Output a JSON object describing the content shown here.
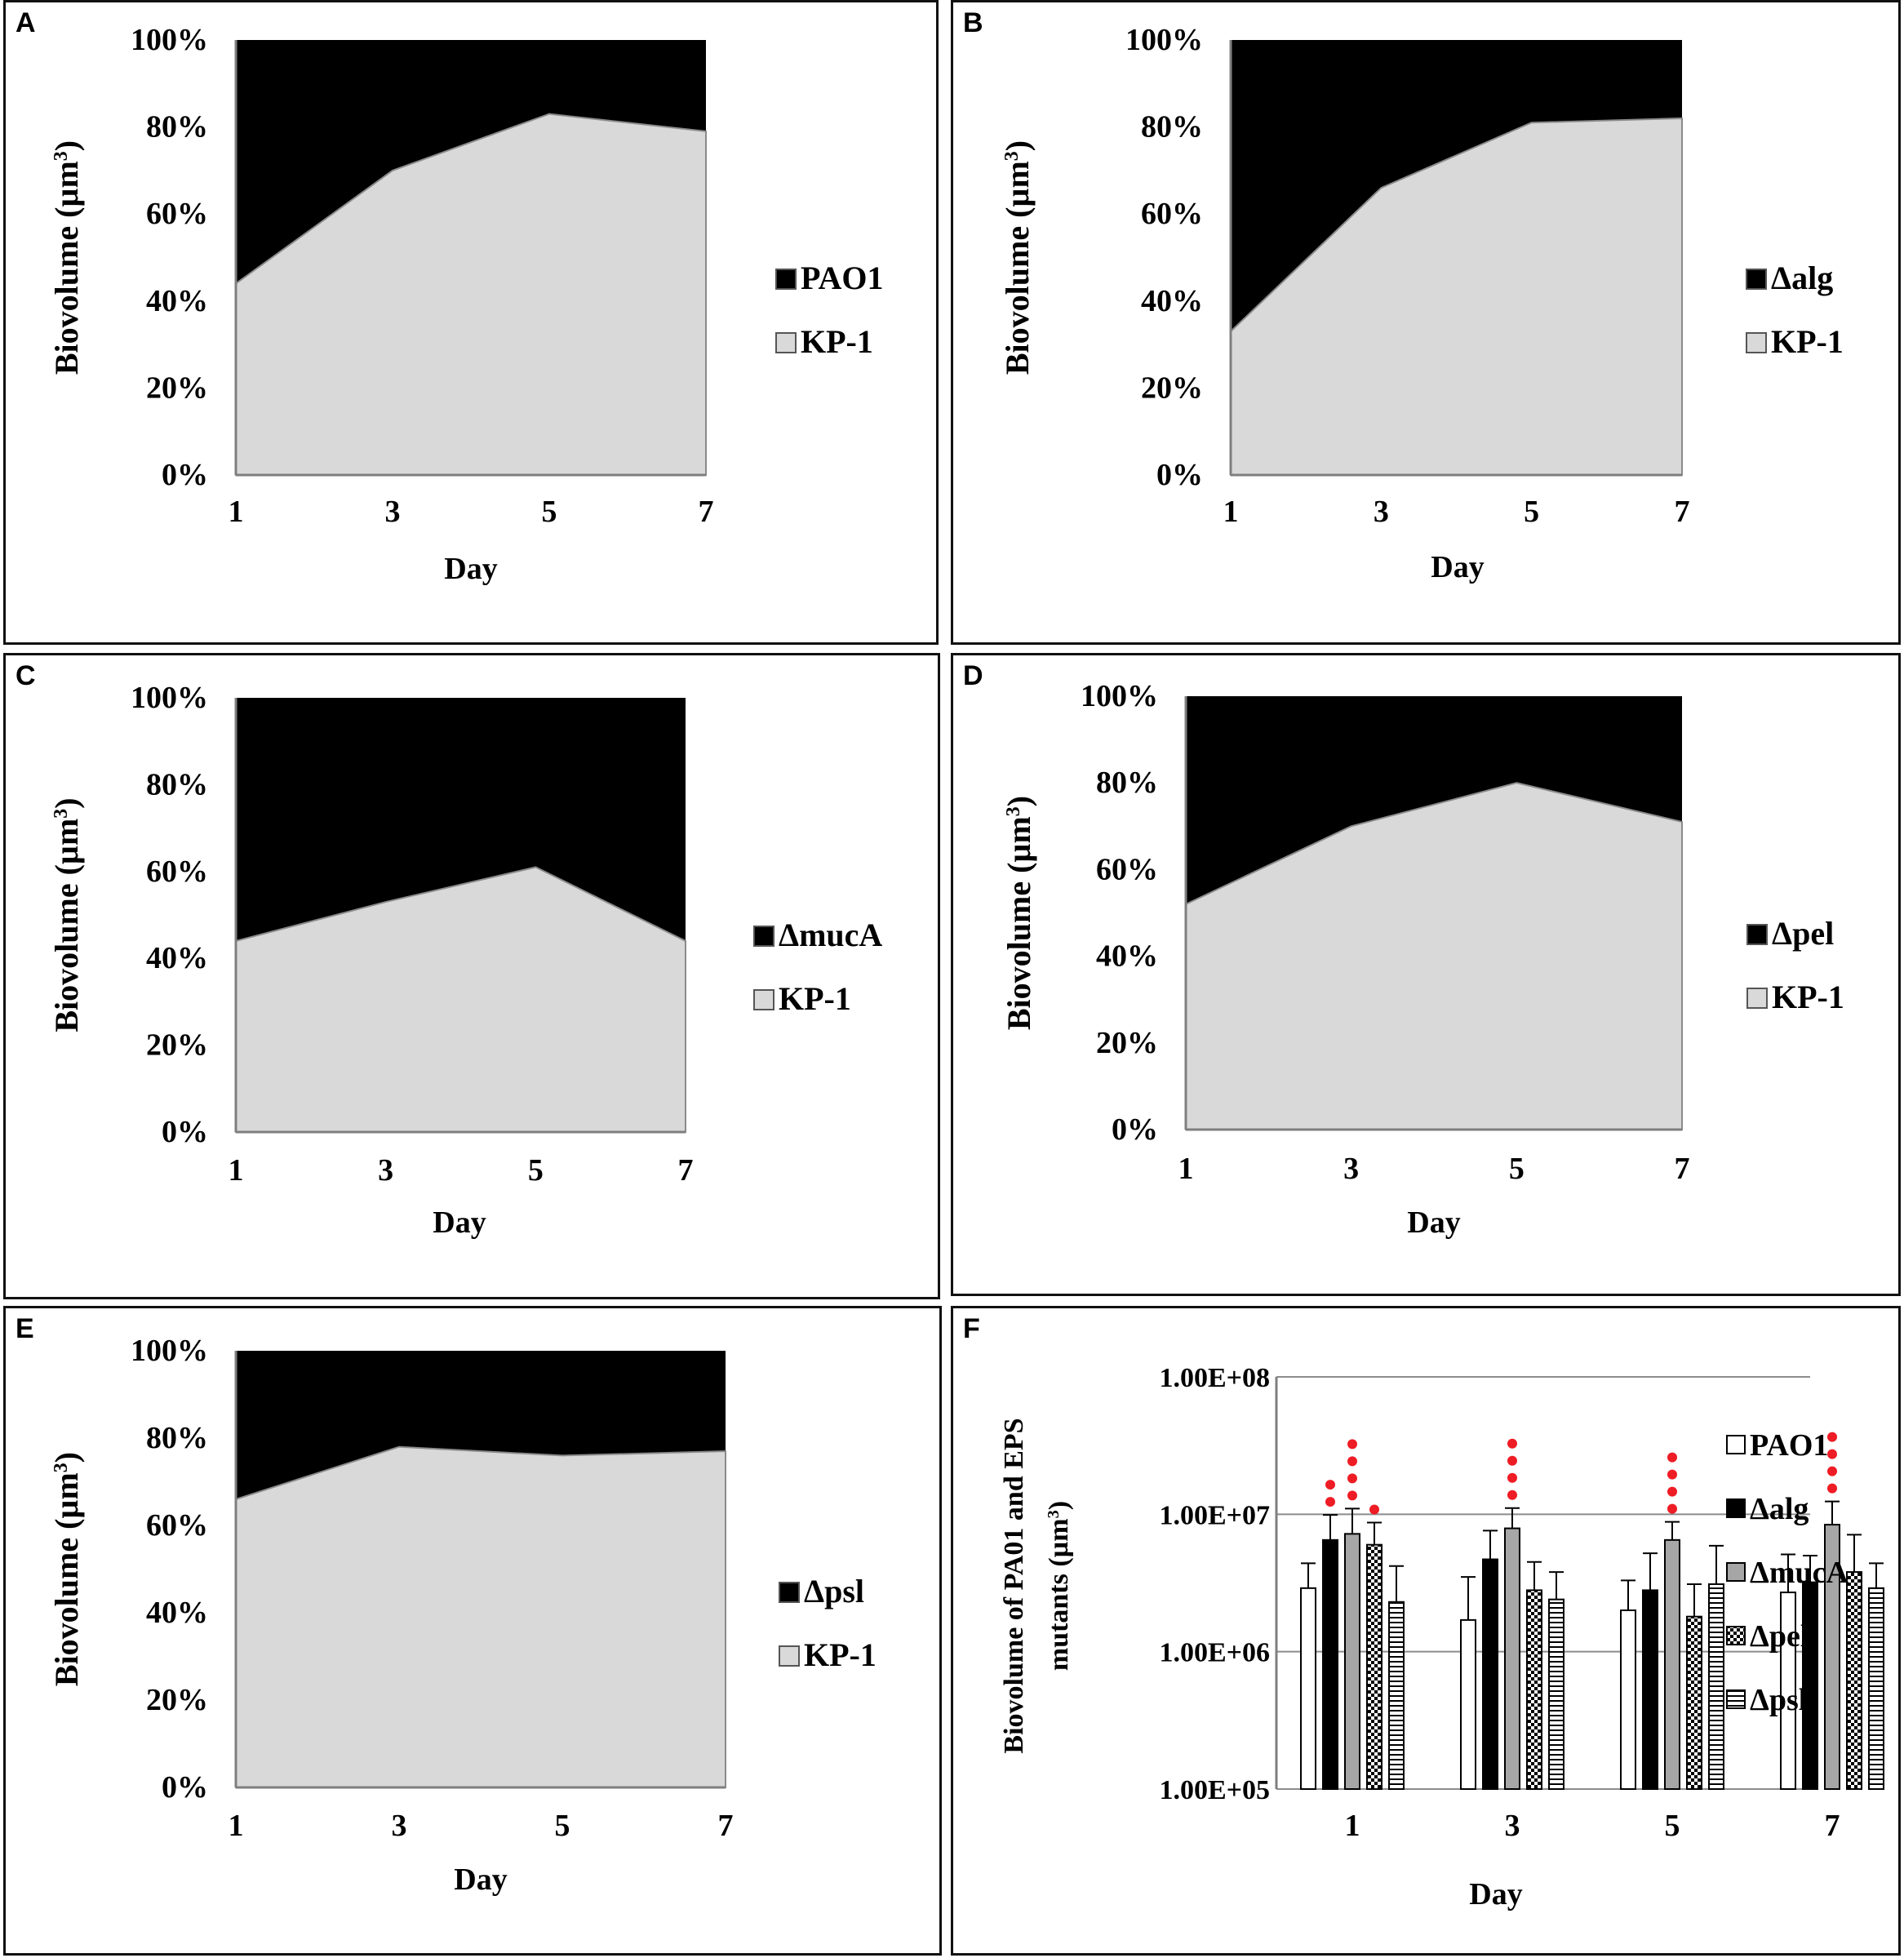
{
  "colors": {
    "background": "#ffffff",
    "dark_fill": "#000000",
    "light_fill": "#d9d9d9",
    "pattern_fill": "#ffffff",
    "significance": "#ee1c24",
    "axis": "#7f7f7f"
  },
  "chart_data": [
    {
      "panel": "A",
      "type": "area",
      "stacked": "percent",
      "ylabel": "Biovolume  (µm³)",
      "xlabel": "Day",
      "x": [
        1,
        3,
        5,
        7
      ],
      "ylim": [
        0,
        100
      ],
      "yticks": [
        "0%",
        "20%",
        "40%",
        "60%",
        "80%",
        "100%"
      ],
      "series": [
        {
          "name": "PAO1",
          "color": "#000000",
          "values": [
            56,
            30,
            17,
            21
          ]
        },
        {
          "name": "KP-1",
          "color": "#d9d9d9",
          "values": [
            44,
            70,
            83,
            79
          ]
        }
      ],
      "legend_position": "right"
    },
    {
      "panel": "B",
      "type": "area",
      "stacked": "percent",
      "ylabel": "Biovolume  (µm³)",
      "xlabel": "Day",
      "x": [
        1,
        3,
        5,
        7
      ],
      "ylim": [
        0,
        100
      ],
      "yticks": [
        "0%",
        "20%",
        "40%",
        "60%",
        "80%",
        "100%"
      ],
      "series": [
        {
          "name": "Δalg",
          "color": "#000000",
          "values": [
            67,
            34,
            19,
            18
          ]
        },
        {
          "name": "KP-1",
          "color": "#d9d9d9",
          "values": [
            33,
            66,
            81,
            82
          ]
        }
      ],
      "legend_position": "right"
    },
    {
      "panel": "C",
      "type": "area",
      "stacked": "percent",
      "ylabel": "Biovolume  (µm³)",
      "xlabel": "Day",
      "x": [
        1,
        3,
        5,
        7
      ],
      "ylim": [
        0,
        100
      ],
      "yticks": [
        "0%",
        "20%",
        "40%",
        "60%",
        "80%",
        "100%"
      ],
      "series": [
        {
          "name": "ΔmucA",
          "color": "#000000",
          "values": [
            56,
            47,
            39,
            56
          ]
        },
        {
          "name": "KP-1",
          "color": "#d9d9d9",
          "values": [
            44,
            53,
            61,
            44
          ]
        }
      ],
      "legend_position": "right"
    },
    {
      "panel": "D",
      "type": "area",
      "stacked": "percent",
      "ylabel": "Biovolume  (µm³)",
      "xlabel": "Day",
      "x": [
        1,
        3,
        5,
        7
      ],
      "ylim": [
        0,
        100
      ],
      "yticks": [
        "0%",
        "20%",
        "40%",
        "60%",
        "80%",
        "100%"
      ],
      "series": [
        {
          "name": "Δpel",
          "color": "#000000",
          "values": [
            48,
            30,
            20,
            29
          ]
        },
        {
          "name": "KP-1",
          "color": "#d9d9d9",
          "values": [
            52,
            70,
            80,
            71
          ]
        }
      ],
      "legend_position": "right"
    },
    {
      "panel": "E",
      "type": "area",
      "stacked": "percent",
      "ylabel": "Biovolume  (µm³)",
      "xlabel": "Day",
      "x": [
        1,
        3,
        5,
        7
      ],
      "ylim": [
        0,
        100
      ],
      "yticks": [
        "0%",
        "20%",
        "40%",
        "60%",
        "80%",
        "100%"
      ],
      "series": [
        {
          "name": "Δpsl",
          "color": "#000000",
          "values": [
            34,
            22,
            24,
            23
          ]
        },
        {
          "name": "KP-1",
          "color": "#d9d9d9",
          "values": [
            66,
            78,
            76,
            77
          ]
        }
      ],
      "legend_position": "right"
    },
    {
      "panel": "F",
      "type": "bar",
      "yscale": "log",
      "ylabel_line1": "Biovolume  of  PA01 and EPS",
      "ylabel_line2": "mutants  (µm³)",
      "xlabel": "Day",
      "categories": [
        "1",
        "3",
        "5",
        "7"
      ],
      "ylim": [
        100000,
        100000000
      ],
      "yticks": [
        "1.00E+05",
        "1.00E+06",
        "1.00E+07",
        "1.00E+08"
      ],
      "gridlines": true,
      "series": [
        {
          "name": "PAO1",
          "pattern": "white",
          "values": [
            2900000,
            1700000,
            2000000,
            2700000
          ],
          "errors": [
            1500000,
            1800000,
            1300000,
            2400000
          ],
          "stars": [
            0,
            0,
            0,
            0
          ]
        },
        {
          "name": "Δalg",
          "pattern": "black",
          "values": [
            6500000,
            4700000,
            2800000,
            3200000
          ],
          "errors": [
            3400000,
            2900000,
            2400000,
            1800000
          ],
          "stars": [
            2,
            0,
            0,
            0
          ]
        },
        {
          "name": "ΔmucA",
          "pattern": "gray",
          "values": [
            7200000,
            7900000,
            6500000,
            8400000
          ],
          "errors": [
            3800000,
            3200000,
            2300000,
            4000000
          ],
          "stars": [
            4,
            4,
            4,
            4
          ]
        },
        {
          "name": "Δpel",
          "pattern": "checker",
          "values": [
            6000000,
            2800000,
            1800000,
            3800000
          ],
          "errors": [
            2700000,
            1700000,
            1300000,
            3300000
          ],
          "stars": [
            1,
            0,
            0,
            0
          ]
        },
        {
          "name": "Δpsl",
          "pattern": "hlines",
          "values": [
            2300000,
            2400000,
            3100000,
            2900000
          ],
          "errors": [
            1900000,
            1400000,
            2800000,
            1500000
          ],
          "stars": [
            0,
            0,
            0,
            0
          ]
        }
      ],
      "legend_position": "right"
    }
  ]
}
